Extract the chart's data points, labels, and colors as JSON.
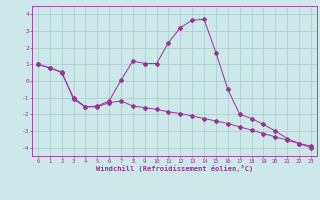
{
  "xlabel": "Windchill (Refroidissement éolien,°C)",
  "xlim": [
    -0.5,
    23.5
  ],
  "ylim": [
    -4.5,
    4.5
  ],
  "xticks": [
    0,
    1,
    2,
    3,
    4,
    5,
    6,
    7,
    8,
    9,
    10,
    11,
    12,
    13,
    14,
    15,
    16,
    17,
    18,
    19,
    20,
    21,
    22,
    23
  ],
  "yticks": [
    -4,
    -3,
    -2,
    -1,
    0,
    1,
    2,
    3,
    4
  ],
  "bg_color": "#cce8e8",
  "line_color": "#993399",
  "grid_color": "#aacccc",
  "line1_x": [
    0,
    1,
    2,
    3,
    4,
    5,
    6,
    7,
    8,
    9,
    10,
    11,
    12,
    13,
    14,
    15,
    16,
    17,
    18,
    19,
    20,
    21,
    22,
    23
  ],
  "line1_y": [
    1.0,
    0.8,
    0.5,
    -1.0,
    -1.55,
    -1.5,
    -1.2,
    0.05,
    1.2,
    1.05,
    1.05,
    2.3,
    3.2,
    3.65,
    3.7,
    1.7,
    -0.5,
    -2.0,
    -2.25,
    -2.6,
    -3.0,
    -3.45,
    -3.75,
    -3.9
  ],
  "line2_x": [
    0,
    1,
    2,
    3,
    4,
    5,
    6,
    7,
    8,
    9,
    10,
    11,
    12,
    13,
    14,
    15,
    16,
    17,
    18,
    19,
    20,
    21,
    22,
    23
  ],
  "line2_y": [
    1.0,
    0.78,
    0.55,
    -1.1,
    -1.55,
    -1.55,
    -1.3,
    -1.2,
    -1.5,
    -1.6,
    -1.7,
    -1.85,
    -1.95,
    -2.1,
    -2.25,
    -2.4,
    -2.55,
    -2.75,
    -2.95,
    -3.15,
    -3.35,
    -3.55,
    -3.75,
    -4.0
  ]
}
